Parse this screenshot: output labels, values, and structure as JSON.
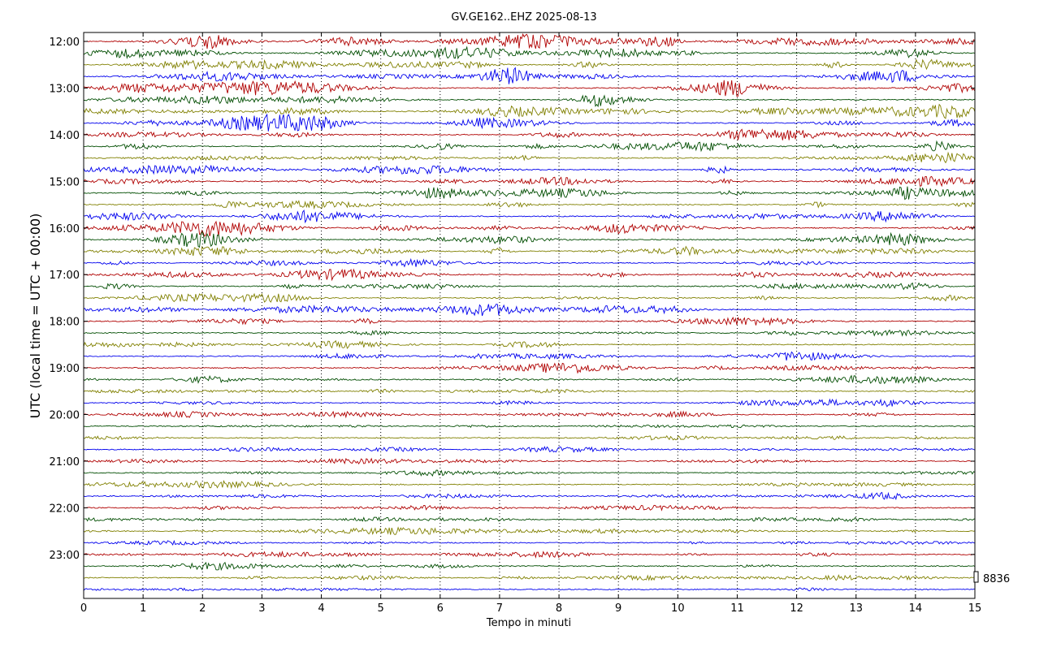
{
  "chart_data": {
    "type": "line",
    "title": "GV.GE162..EHZ 2025-08-13",
    "xlabel": "Tempo in minuti",
    "ylabel": "UTC (local time = UTC + 00:00)",
    "xlim": [
      0,
      15
    ],
    "x_ticks": [
      "0",
      "1",
      "2",
      "3",
      "4",
      "5",
      "6",
      "7",
      "8",
      "9",
      "10",
      "11",
      "12",
      "13",
      "14",
      "15"
    ],
    "y_tick_labels": [
      "12:00",
      "13:00",
      "14:00",
      "15:00",
      "16:00",
      "17:00",
      "18:00",
      "19:00",
      "20:00",
      "21:00",
      "22:00",
      "23:00"
    ],
    "rows": 48,
    "row_minutes": 15,
    "start_time": "12:00",
    "grid_x": true,
    "grid_style": "dotted",
    "colors": [
      "#b00000",
      "#004d00",
      "#808000",
      "#0000ee"
    ],
    "scale_label": "8836"
  }
}
